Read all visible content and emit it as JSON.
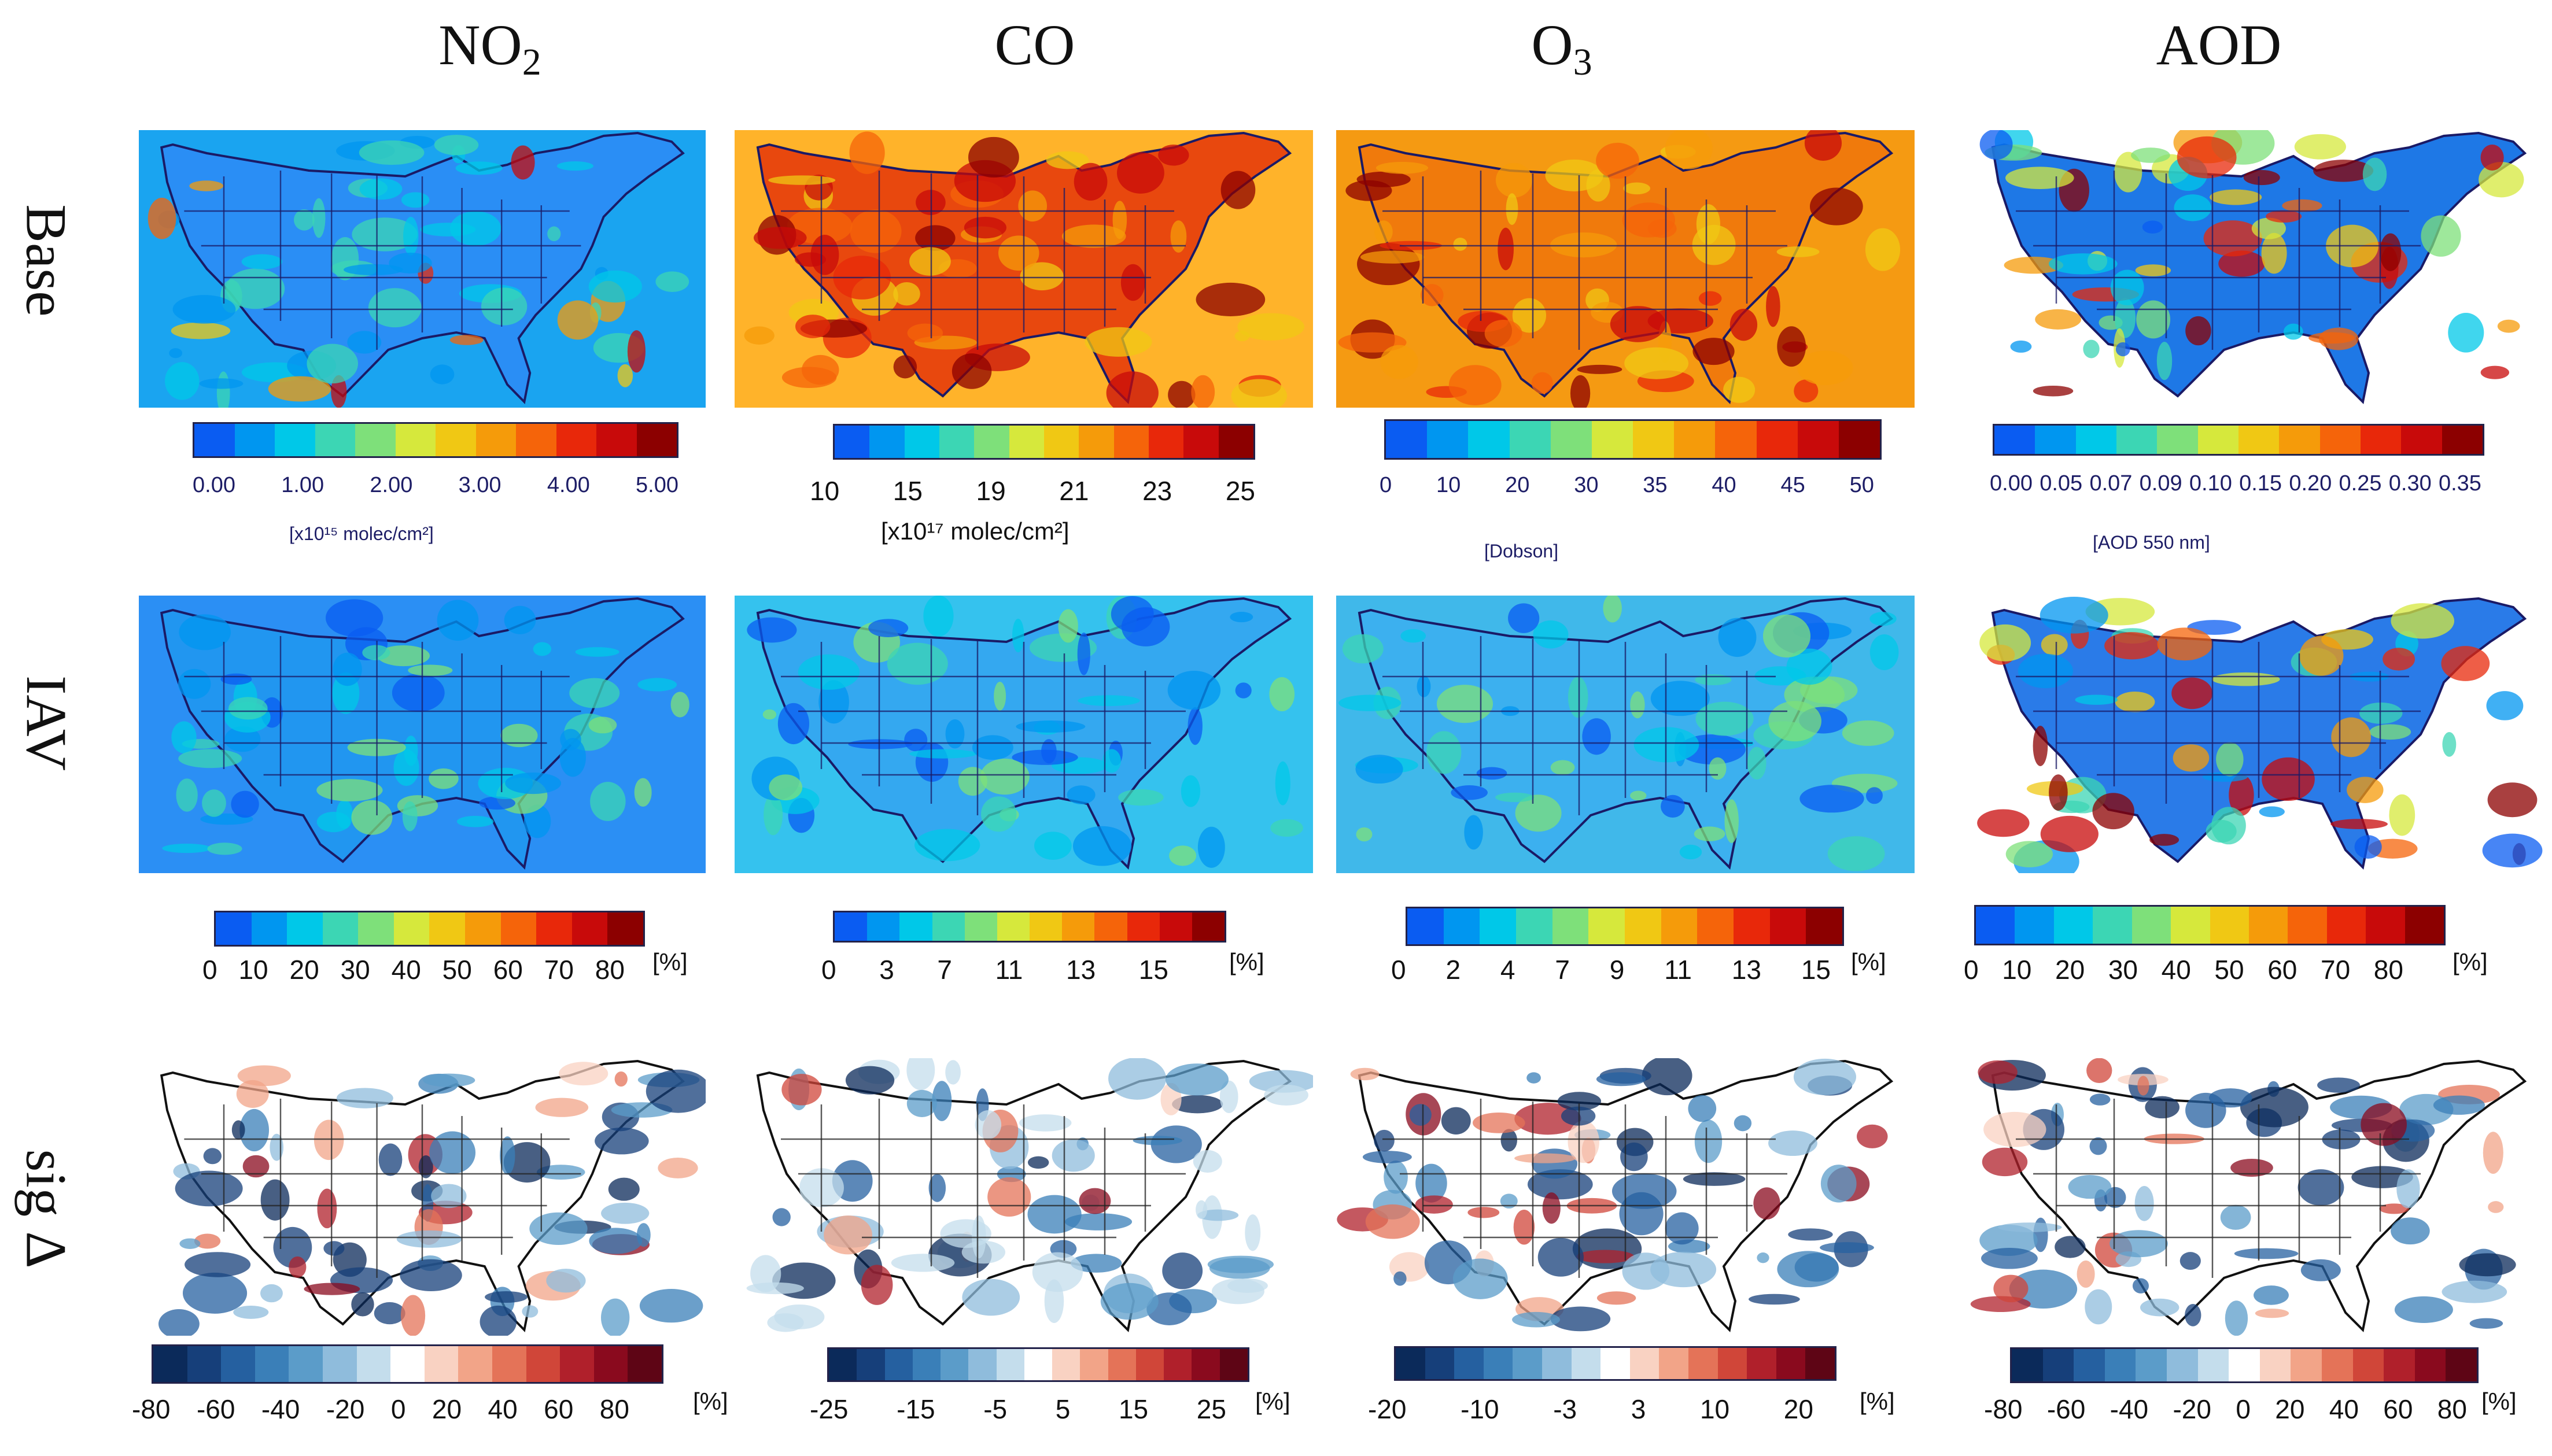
{
  "columns": [
    {
      "main": "NO",
      "sub": "2"
    },
    {
      "main": "CO",
      "sub": ""
    },
    {
      "main": "O",
      "sub": "3"
    },
    {
      "main": "AOD",
      "sub": ""
    }
  ],
  "rows": [
    "Base",
    "IAV",
    "sig Δ"
  ],
  "colorbars": {
    "r0c0": {
      "ticks": [
        "0.00",
        "1.00",
        "2.00",
        "3.00",
        "4.00",
        "5.00"
      ],
      "unit": "[x10¹⁵ molec/cm²]"
    },
    "r0c1": {
      "ticks": [
        "10",
        "15",
        "19",
        "21",
        "23",
        "25"
      ],
      "unit": "[x10¹⁷ molec/cm²]"
    },
    "r0c2": {
      "ticks": [
        "0",
        "10",
        "20",
        "30",
        "35",
        "40",
        "45",
        "50"
      ],
      "unit": "[Dobson]"
    },
    "r0c3": {
      "ticks": [
        "0.00",
        "0.05",
        "0.07",
        "0.09",
        "0.10",
        "0.15",
        "0.20",
        "0.25",
        "0.30",
        "0.35"
      ],
      "unit": "[AOD 550 nm]"
    },
    "r1c0": {
      "ticks": [
        "0",
        "10",
        "20",
        "30",
        "40",
        "50",
        "60",
        "70",
        "80"
      ],
      "unit": "[%]"
    },
    "r1c1": {
      "ticks": [
        "0",
        "3",
        "7",
        "11",
        "13",
        "15"
      ],
      "unit": "[%]"
    },
    "r1c2": {
      "ticks": [
        "0",
        "2",
        "4",
        "7",
        "9",
        "11",
        "13",
        "15"
      ],
      "unit": "[%]"
    },
    "r1c3": {
      "ticks": [
        "0",
        "10",
        "20",
        "30",
        "40",
        "50",
        "60",
        "70",
        "80"
      ],
      "unit": "[%]"
    },
    "r2c0": {
      "ticks": [
        "-80",
        "-60",
        "-40",
        "-20",
        "0",
        "20",
        "40",
        "60",
        "80"
      ],
      "unit": "[%]"
    },
    "r2c1": {
      "ticks": [
        "-25",
        "-15",
        "-5",
        "5",
        "15",
        "25"
      ],
      "unit": "[%]"
    },
    "r2c2": {
      "ticks": [
        "-20",
        "-10",
        "-3",
        "3",
        "10",
        "20"
      ],
      "unit": "[%]"
    },
    "r2c3": {
      "ticks": [
        "-80",
        "-60",
        "-40",
        "-20",
        "0",
        "20",
        "40",
        "60",
        "80"
      ],
      "unit": "[%]"
    }
  },
  "palette": {
    "rainbow": [
      "#0a5cf2",
      "#0096f0",
      "#00c8e8",
      "#3cd6b4",
      "#7ee07a",
      "#d6e83c",
      "#f0c814",
      "#f59b0a",
      "#f5640a",
      "#e8280a",
      "#c80a0a",
      "#8c0000"
    ],
    "diverging": [
      "#0b2a5a",
      "#163f7a",
      "#2560a0",
      "#3a7fb8",
      "#5b9cc9",
      "#8fbcdc",
      "#c4ddec",
      "#ffffff",
      "#f9d2c2",
      "#f2a488",
      "#e47358",
      "#d04639",
      "#b0202b",
      "#8a0a1e",
      "#5e0515"
    ]
  }
}
